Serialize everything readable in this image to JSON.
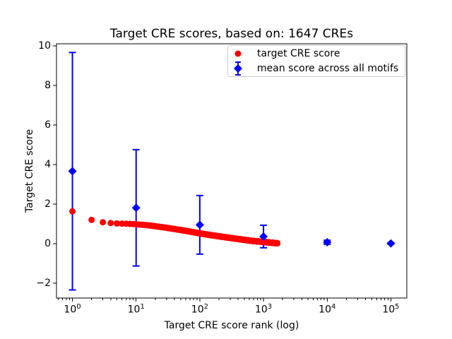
{
  "chart_data": {
    "type": "scatter",
    "title": "Target CRE scores, based on: 1647 CREs",
    "xlabel": "Target CRE score rank (log)",
    "ylabel": "Target CRE score",
    "xscale": "log",
    "grid": false,
    "background_color": "#ffffff",
    "xlim_log10": [
      -0.25,
      5.25
    ],
    "ylim": [
      -2.75,
      10.1
    ],
    "yticks": [
      -2,
      0,
      2,
      4,
      6,
      8,
      10
    ],
    "xticks": [
      {
        "value": 1,
        "base": "10",
        "exp": "0"
      },
      {
        "value": 10,
        "base": "10",
        "exp": "1"
      },
      {
        "value": 100,
        "base": "10",
        "exp": "2"
      },
      {
        "value": 1000,
        "base": "10",
        "exp": "3"
      },
      {
        "value": 10000,
        "base": "10",
        "exp": "4"
      },
      {
        "value": 100000,
        "base": "10",
        "exp": "5"
      }
    ],
    "legend": {
      "position": "upper right",
      "entries": [
        {
          "label": "target CRE score",
          "marker": "circle",
          "color": "#ff0000"
        },
        {
          "label": "mean score across all motifs",
          "marker": "diamond-errorbar",
          "color": "#0000ff"
        }
      ]
    },
    "series": [
      {
        "name": "target CRE score",
        "marker": "circle",
        "color": "#ff0000",
        "n_points": 1647,
        "rank_range": [
          1,
          1647
        ],
        "control_points": [
          [
            1,
            1.63
          ],
          [
            2,
            1.2
          ],
          [
            3,
            1.08
          ],
          [
            4,
            1.04
          ],
          [
            5,
            1.02
          ],
          [
            6,
            1.01
          ],
          [
            8,
            1.0
          ],
          [
            10,
            0.98
          ],
          [
            15,
            0.93
          ],
          [
            20,
            0.88
          ],
          [
            30,
            0.8
          ],
          [
            50,
            0.69
          ],
          [
            70,
            0.61
          ],
          [
            100,
            0.52
          ],
          [
            150,
            0.43
          ],
          [
            200,
            0.37
          ],
          [
            300,
            0.29
          ],
          [
            500,
            0.19
          ],
          [
            700,
            0.13
          ],
          [
            1000,
            0.09
          ],
          [
            1300,
            0.05
          ],
          [
            1647,
            0.02
          ]
        ]
      },
      {
        "name": "mean score across all motifs",
        "marker": "diamond",
        "color": "#0000ff",
        "points": [
          {
            "x": 1,
            "y": 3.66,
            "err": 6.0
          },
          {
            "x": 10,
            "y": 1.81,
            "err": 2.94
          },
          {
            "x": 100,
            "y": 0.95,
            "err": 1.48
          },
          {
            "x": 1000,
            "y": 0.36,
            "err": 0.57
          },
          {
            "x": 10000,
            "y": 0.07,
            "err": 0.1
          },
          {
            "x": 100000,
            "y": 0.01,
            "err": 0.03
          }
        ]
      }
    ]
  }
}
